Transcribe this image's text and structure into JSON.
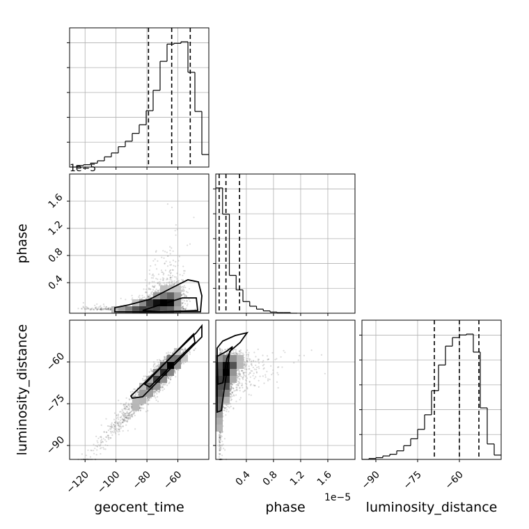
{
  "chart_data": {
    "type": "corner",
    "parameters": [
      "geocent_time",
      "phase",
      "luminosity_distance"
    ],
    "offset_labels": {
      "phase_x": "1e−5",
      "phase_y": "1e−5",
      "top_hist": "1e−5"
    },
    "ranges": {
      "geocent_time": [
        -130,
        -40
      ],
      "phase": [
        -0.05,
        2.0
      ],
      "luminosity_distance": [
        -95,
        -45
      ]
    },
    "ticks": {
      "geocent_time": [
        -120,
        -100,
        -80,
        -60
      ],
      "phase": [
        0.4,
        0.8,
        1.2,
        1.6
      ],
      "luminosity_distance": [
        -90,
        -75,
        -60
      ]
    },
    "tick_labels": {
      "geocent_time": [
        "−120",
        "−100",
        "−80",
        "−60"
      ],
      "phase": [
        "0.4",
        "0.8",
        "1.2",
        "1.6"
      ],
      "luminosity_distance": [
        "−90",
        "−75",
        "−60"
      ]
    },
    "quantiles": {
      "geocent_time": [
        -79,
        -64,
        -52
      ],
      "phase": [
        0.0,
        0.1,
        0.3
      ],
      "luminosity_distance": [
        -69,
        -60,
        -53
      ]
    },
    "hist_geocent_time": {
      "edges": [
        -130,
        -125.5,
        -121,
        -116.5,
        -112,
        -107.5,
        -103,
        -98.5,
        -94,
        -89.5,
        -85,
        -80.5,
        -76,
        -71.5,
        -67,
        -62.5,
        -58,
        -53.5,
        -49,
        -44.5,
        -40
      ],
      "counts": [
        0,
        2,
        3,
        5,
        8,
        13,
        18,
        26,
        33,
        43,
        54,
        72,
        98,
        135,
        157,
        158,
        160,
        121,
        71,
        16
      ]
    },
    "hist_phase": {
      "edges": [
        -0.05,
        0.05,
        0.15,
        0.25,
        0.35,
        0.45,
        0.55,
        0.65,
        0.75,
        0.85,
        0.95,
        1.05,
        1.15
      ],
      "counts": [
        215,
        170,
        65,
        40,
        20,
        12,
        7,
        4,
        2,
        1,
        1,
        0
      ]
    },
    "hist_luminosity_distance": {
      "edges": [
        -95,
        -92.5,
        -90,
        -87.5,
        -85,
        -82.5,
        -80,
        -77.5,
        -75,
        -72.5,
        -70,
        -67.5,
        -65,
        -62.5,
        -60,
        -57.5,
        -55,
        -52.5,
        -50,
        -47.5,
        -45
      ],
      "counts": [
        0,
        1,
        2,
        4,
        6,
        10,
        16,
        24,
        35,
        52,
        80,
        110,
        132,
        142,
        145,
        146,
        125,
        60,
        18,
        5
      ]
    }
  }
}
